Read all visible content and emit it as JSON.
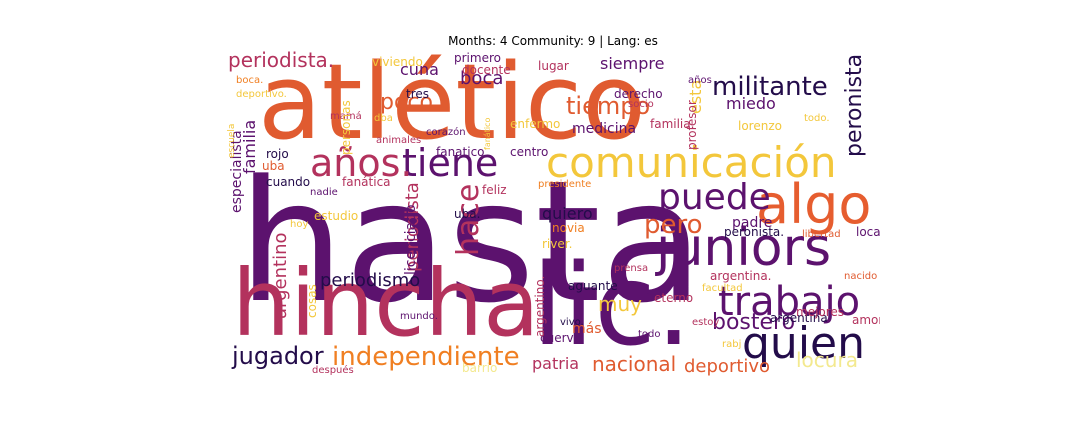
{
  "title": "Months: 4 Community: 9 | Lang: es",
  "words": [
    {
      "text": "hasta",
      "color": "#5c126e",
      "rotate": false
    },
    {
      "text": "atlético",
      "color": "#e05b30",
      "rotate": false
    },
    {
      "text": "hincha",
      "color": "#b3325d",
      "rotate": false
    },
    {
      "text": "lic.",
      "color": "#5c126e",
      "rotate": false
    },
    {
      "text": "comunicación",
      "color": "#f3c73b",
      "rotate": false
    },
    {
      "text": "juniors",
      "color": "#5c126e",
      "rotate": false
    },
    {
      "text": "quien",
      "color": "#230c4a",
      "rotate": false
    },
    {
      "text": "algo",
      "color": "#e65d2f",
      "rotate": false
    },
    {
      "text": "puede",
      "color": "#5c126e",
      "rotate": false
    },
    {
      "text": "tiene",
      "color": "#5c126e",
      "rotate": false
    },
    {
      "text": "años.",
      "color": "#b3325d",
      "rotate": false
    },
    {
      "text": "trabajo",
      "color": "#5c126e",
      "rotate": false
    },
    {
      "text": "militante",
      "color": "#230c4a",
      "rotate": false
    },
    {
      "text": "independiente",
      "color": "#f07f22",
      "rotate": false
    },
    {
      "text": "jugador",
      "color": "#230c4a",
      "rotate": false
    },
    {
      "text": "hace",
      "color": "#b3325d",
      "rotate": true
    },
    {
      "text": "peronista",
      "color": "#230c4a",
      "rotate": true
    },
    {
      "text": "periodista.",
      "color": "#b3325d",
      "rotate": false
    },
    {
      "text": "tiempo",
      "color": "#e05b30",
      "rotate": false
    },
    {
      "text": "poco",
      "color": "#e05b30",
      "rotate": false
    },
    {
      "text": "pero",
      "color": "#e05b30",
      "rotate": false
    },
    {
      "text": "bostero",
      "color": "#5c126e",
      "rotate": false
    },
    {
      "text": "periodismo",
      "color": "#230c4a",
      "rotate": false
    },
    {
      "text": "nacional",
      "color": "#e05b30",
      "rotate": false
    },
    {
      "text": "locura",
      "color": "#f3e98f",
      "rotate": false
    },
    {
      "text": "deportivo",
      "color": "#e05b30",
      "rotate": false
    },
    {
      "text": "muy",
      "color": "#f3c73b",
      "rotate": false
    },
    {
      "text": "boca",
      "color": "#5c126e",
      "rotate": false
    },
    {
      "text": "cuna",
      "color": "#5c126e",
      "rotate": false
    },
    {
      "text": "siempre",
      "color": "#5c126e",
      "rotate": false
    },
    {
      "text": "miedo",
      "color": "#5c126e",
      "rotate": false
    },
    {
      "text": "quiero",
      "color": "#230c4a",
      "rotate": false
    },
    {
      "text": "padre",
      "color": "#5c126e",
      "rotate": false
    },
    {
      "text": "patria",
      "color": "#b3325d",
      "rotate": false
    },
    {
      "text": "familia",
      "color": "#5c126e",
      "rotate": true
    },
    {
      "text": "especialista",
      "color": "#5c126e",
      "rotate": true
    },
    {
      "text": "argentino",
      "color": "#b3325d",
      "rotate": true
    },
    {
      "text": "periodista",
      "color": "#b3325d",
      "rotate": true
    },
    {
      "text": "esta",
      "color": "#f3c73b",
      "rotate": true
    },
    {
      "text": "medicina",
      "color": "#5c126e",
      "rotate": false
    },
    {
      "text": "fanatico",
      "color": "#5c126e",
      "rotate": false
    },
    {
      "text": "centro",
      "color": "#5c126e",
      "rotate": false
    },
    {
      "text": "fanática",
      "color": "#b3325d",
      "rotate": false
    },
    {
      "text": "rojo",
      "color": "#230c4a",
      "rotate": false
    },
    {
      "text": "cuando",
      "color": "#230c4a",
      "rotate": false
    },
    {
      "text": "uba",
      "color": "#e05b30",
      "rotate": false
    },
    {
      "text": "feliz",
      "color": "#b3325d",
      "rotate": false
    },
    {
      "text": "estudio",
      "color": "#f3c73b",
      "rotate": false
    },
    {
      "text": "licenciado",
      "color": "#5c126e",
      "rotate": true
    },
    {
      "text": "uba.",
      "color": "#230c4a",
      "rotate": false
    },
    {
      "text": "novia",
      "color": "#f07f22",
      "rotate": false
    },
    {
      "text": "river.",
      "color": "#f3c73b",
      "rotate": false
    },
    {
      "text": "aguante",
      "color": "#230c4a",
      "rotate": false
    },
    {
      "text": "eterno",
      "color": "#b3325d",
      "rotate": false
    },
    {
      "text": "más",
      "color": "#e05b30",
      "rotate": false
    },
    {
      "text": "cuervo",
      "color": "#5c126e",
      "rotate": false
    },
    {
      "text": "argentina",
      "color": "#230c4a",
      "rotate": false
    },
    {
      "text": "argentina.",
      "color": "#b3325d",
      "rotate": false
    },
    {
      "text": "mejores",
      "color": "#b3325d",
      "rotate": false
    },
    {
      "text": "amor",
      "color": "#b3325d",
      "rotate": false
    },
    {
      "text": "peronista.",
      "color": "#230c4a",
      "rotate": false
    },
    {
      "text": "loca",
      "color": "#5c126e",
      "rotate": false
    },
    {
      "text": "primero",
      "color": "#5c126e",
      "rotate": false
    },
    {
      "text": "docente",
      "color": "#b3325d",
      "rotate": false
    },
    {
      "text": "lugar",
      "color": "#b3325d",
      "rotate": false
    },
    {
      "text": "tres",
      "color": "#230c4a",
      "rotate": false
    },
    {
      "text": "derecho",
      "color": "#5c126e",
      "rotate": false
    },
    {
      "text": "profesor",
      "color": "#b3325d",
      "rotate": true
    },
    {
      "text": "lorenzo",
      "color": "#f3c73b",
      "rotate": false
    },
    {
      "text": "enfermo",
      "color": "#f3c73b",
      "rotate": false
    },
    {
      "text": "familia.",
      "color": "#b3325d",
      "rotate": false
    },
    {
      "text": "mamá",
      "color": "#b3325d",
      "rotate": false
    },
    {
      "text": "personas",
      "color": "#f3c73b",
      "rotate": true
    },
    {
      "text": "viviendo",
      "color": "#f3c73b",
      "rotate": false
    },
    {
      "text": "cosas",
      "color": "#f3c73b",
      "rotate": true
    },
    {
      "text": "argentino.",
      "color": "#b3325d",
      "rotate": true
    },
    {
      "text": "mundo.",
      "color": "#5c126e",
      "rotate": false
    },
    {
      "text": "después",
      "color": "#b3325d",
      "rotate": false
    },
    {
      "text": "boca.",
      "color": "#f07f22",
      "rotate": false
    },
    {
      "text": "deportivo.",
      "color": "#f3c73b",
      "rotate": false
    },
    {
      "text": "socio",
      "color": "#b3325d",
      "rotate": false
    },
    {
      "text": "años",
      "color": "#5c126e",
      "rotate": false
    },
    {
      "text": "todo.",
      "color": "#f3c73b",
      "rotate": false
    },
    {
      "text": "corazón",
      "color": "#5c126e",
      "rotate": false
    },
    {
      "text": "animales",
      "color": "#b3325d",
      "rotate": false
    },
    {
      "text": "nadie",
      "color": "#5c126e",
      "rotate": false
    },
    {
      "text": "presidente",
      "color": "#f07f22",
      "rotate": false
    },
    {
      "text": "prensa",
      "color": "#b3325d",
      "rotate": false
    },
    {
      "text": "libertad",
      "color": "#e05b30",
      "rotate": false
    },
    {
      "text": "facultad",
      "color": "#f3c73b",
      "rotate": false
    },
    {
      "text": "nacido",
      "color": "#e05b30",
      "rotate": false
    },
    {
      "text": "vivo.",
      "color": "#230c4a",
      "rotate": false
    },
    {
      "text": "estoy",
      "color": "#b3325d",
      "rotate": false
    },
    {
      "text": "todo",
      "color": "#5c126e",
      "rotate": false
    },
    {
      "text": "rabj",
      "color": "#f3c73b",
      "rotate": false
    },
    {
      "text": "dba",
      "color": "#f3c73b",
      "rotate": false
    },
    {
      "text": "fanático",
      "color": "#f3c73b",
      "rotate": true
    },
    {
      "text": "escuela",
      "color": "#f3c73b",
      "rotate": true
    },
    {
      "text": "hoy",
      "color": "#f3c73b",
      "rotate": false
    },
    {
      "text": "barrio",
      "color": "#f3e98f",
      "rotate": false
    }
  ]
}
